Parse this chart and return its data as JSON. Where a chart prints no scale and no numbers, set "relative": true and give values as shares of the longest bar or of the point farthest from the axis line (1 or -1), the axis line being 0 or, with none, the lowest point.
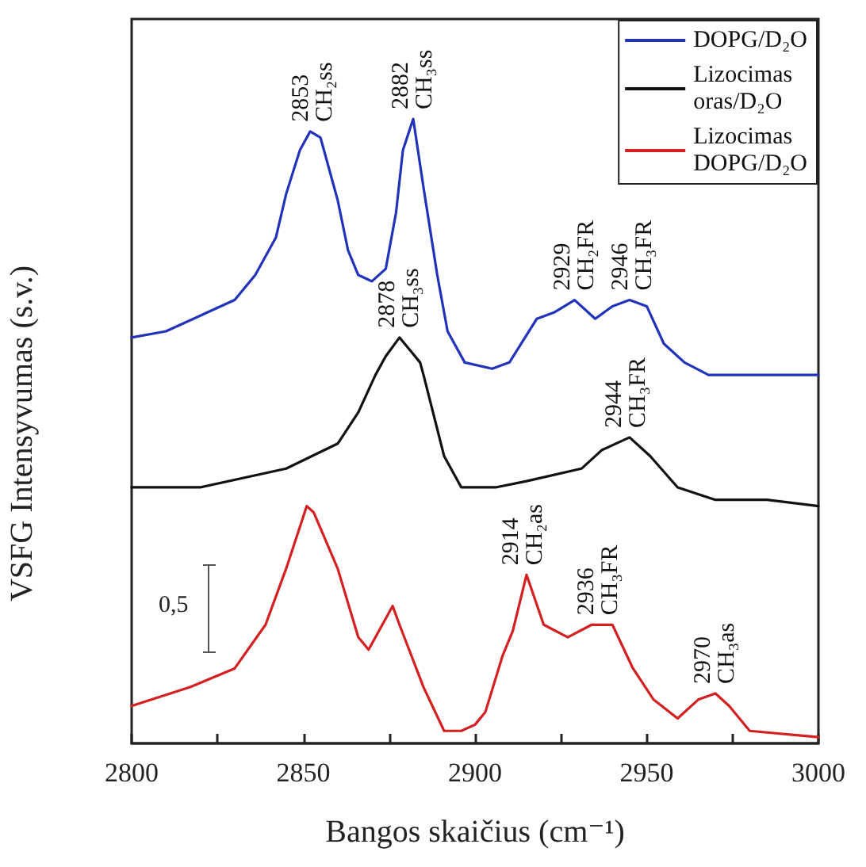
{
  "chart_data": {
    "type": "line",
    "relative": true,
    "xlabel": "Bangos skaičius (cm⁻¹)",
    "ylabel": "VSFG Intensyvumas (s.v.)",
    "xlim": [
      2800,
      3000
    ],
    "xticks": [
      2800,
      {
        "value": 2825,
        "label": null
      },
      2850,
      {
        "value": 2875,
        "label": null
      },
      2900,
      {
        "value": 2925,
        "label": null
      },
      2950,
      {
        "value": 2975,
        "label": null
      },
      3000
    ],
    "grid": false,
    "legend": "top right",
    "series": [
      {
        "name": "DOPG/D₂O",
        "color": "#2233bb",
        "x": [
          2800,
          2810,
          2822,
          2830,
          2836,
          2842,
          2845,
          2849,
          2852,
          2855,
          2860,
          2863,
          2866,
          2870,
          2874,
          2877,
          2879,
          2882,
          2885,
          2889,
          2892,
          2897,
          2905,
          2910,
          2918,
          2923,
          2929,
          2935,
          2940,
          2945,
          2950,
          2955,
          2961,
          2968,
          2977,
          2990,
          3000
        ],
        "values": [
          0.65,
          0.66,
          0.69,
          0.71,
          0.75,
          0.81,
          0.88,
          0.95,
          0.98,
          0.97,
          0.87,
          0.79,
          0.75,
          0.74,
          0.76,
          0.85,
          0.95,
          1.0,
          0.89,
          0.75,
          0.66,
          0.61,
          0.6,
          0.61,
          0.68,
          0.69,
          0.71,
          0.68,
          0.7,
          0.71,
          0.7,
          0.64,
          0.61,
          0.59,
          0.59,
          0.59,
          0.59
        ]
      },
      {
        "name": "Lizocimas\noras/D₂O",
        "color": "#111111",
        "x": [
          2800,
          2820,
          2845,
          2860,
          2866,
          2871,
          2874,
          2878,
          2881,
          2884,
          2885,
          2891,
          2896,
          2906,
          2915,
          2931,
          2937,
          2945,
          2951,
          2959,
          2970,
          2985,
          3000
        ],
        "values": [
          0.41,
          0.41,
          0.44,
          0.48,
          0.53,
          0.59,
          0.62,
          0.65,
          0.63,
          0.61,
          0.59,
          0.46,
          0.41,
          0.41,
          0.42,
          0.44,
          0.47,
          0.49,
          0.46,
          0.41,
          0.39,
          0.39,
          0.38
        ]
      },
      {
        "name": "Lizocimas\nDOPG/D₂O",
        "color": "#d42020",
        "x": [
          2800,
          2817,
          2830,
          2839,
          2845,
          2851,
          2853,
          2860,
          2866,
          2869,
          2876,
          2878,
          2885,
          2891,
          2896,
          2900,
          2903,
          2908,
          2911,
          2915,
          2920,
          2927,
          2934,
          2940,
          2946,
          2952,
          2959,
          2965,
          2970,
          2974,
          2980,
          3000
        ],
        "values": [
          0.06,
          0.09,
          0.12,
          0.19,
          0.28,
          0.38,
          0.37,
          0.28,
          0.17,
          0.15,
          0.22,
          0.19,
          0.09,
          0.02,
          0.02,
          0.03,
          0.05,
          0.14,
          0.18,
          0.27,
          0.19,
          0.17,
          0.19,
          0.19,
          0.12,
          0.07,
          0.04,
          0.07,
          0.08,
          0.06,
          0.02,
          0.01
        ]
      }
    ],
    "annotations": [
      "0,5",
      {
        "text": "2853\nCH₂ss",
        "x": 2853,
        "y": 0.98
      },
      {
        "text": "2882\nCH₃ss",
        "x": 2882,
        "y": 1.0
      },
      {
        "text": "2929\nCH₂FR",
        "x": 2929,
        "y": 0.71
      },
      {
        "text": "2946\nCH₃FR",
        "x": 2946,
        "y": 0.71
      },
      {
        "text": "2878\nCH₃ss",
        "x": 2878,
        "y": 0.65
      },
      {
        "text": "2944\nCH₃FR",
        "x": 2944,
        "y": 0.49
      },
      {
        "text": "2914\nCH₂as",
        "x": 2914,
        "y": 0.27
      },
      {
        "text": "2936\nCH₃FR",
        "x": 2936,
        "y": 0.19
      },
      {
        "text": "2970\nCH₃as",
        "x": 2970,
        "y": 0.08
      }
    ]
  }
}
